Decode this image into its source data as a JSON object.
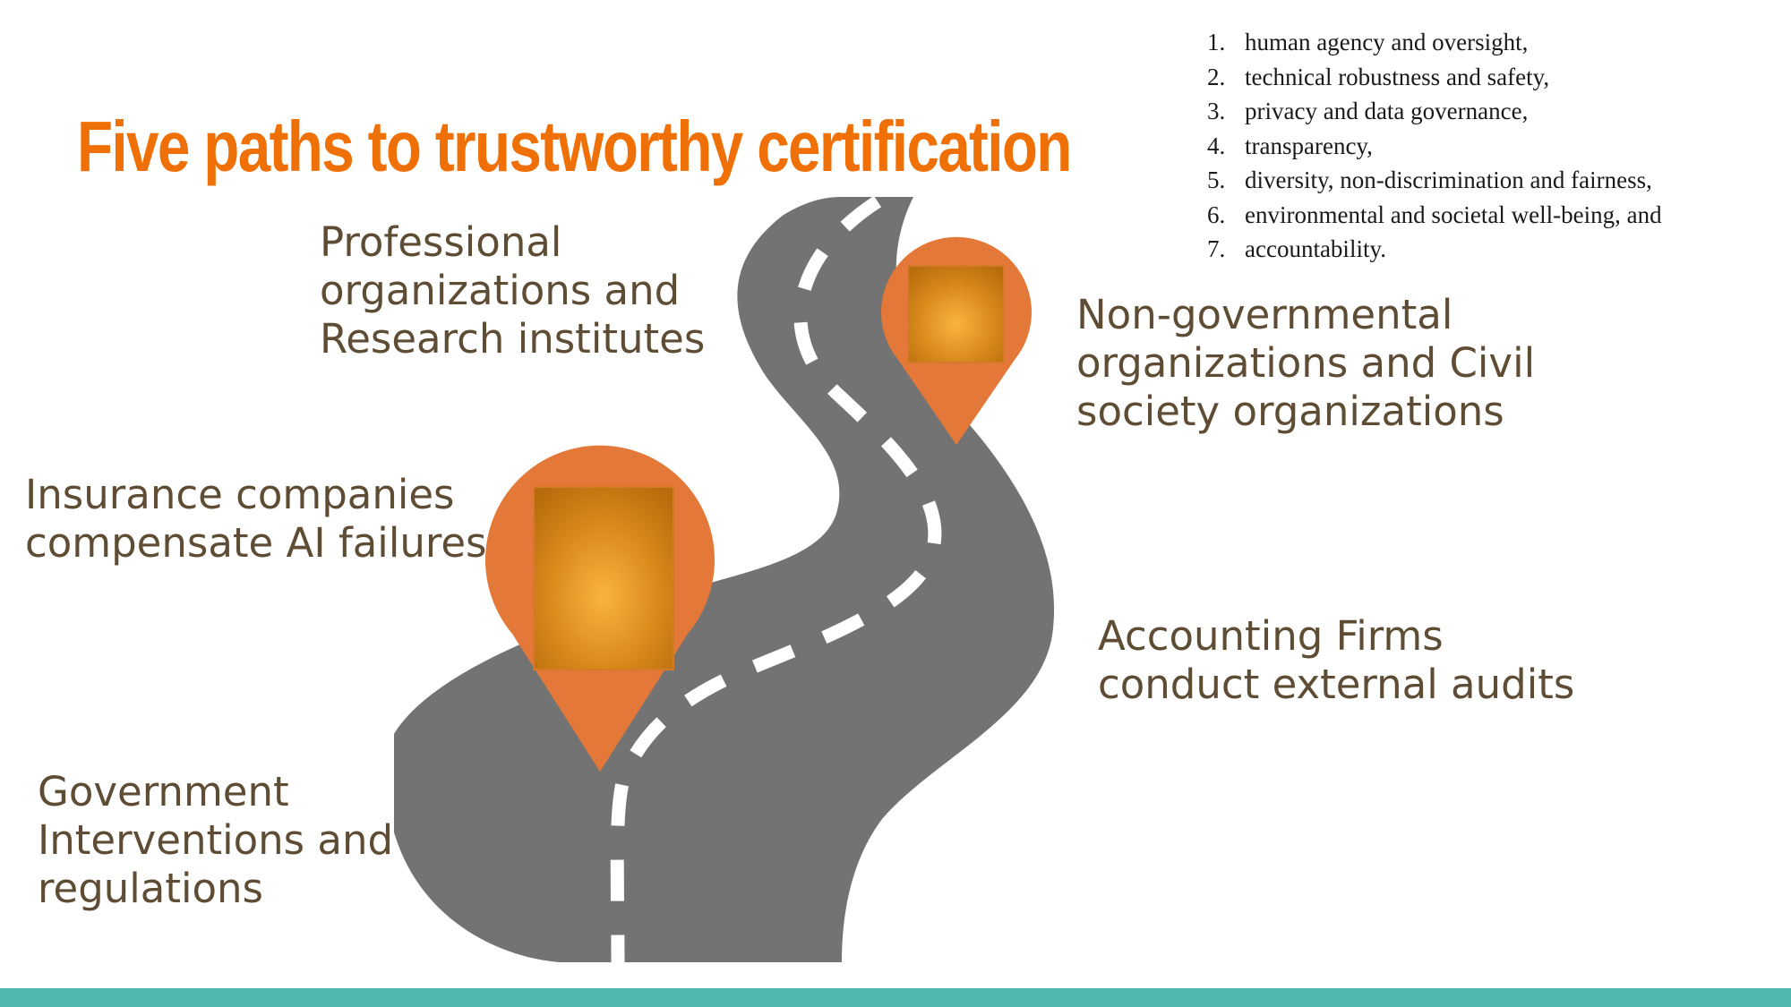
{
  "slide": {
    "title": "Five paths to trustworthy certification",
    "principles": [
      {
        "num": "1.",
        "text": "human agency and oversight,"
      },
      {
        "num": "2.",
        "text": "technical robustness and safety,"
      },
      {
        "num": "3.",
        "text": "privacy and data governance,"
      },
      {
        "num": "4.",
        "text": "transparency,"
      },
      {
        "num": "5.",
        "text": "diversity, non-discrimination and fairness,"
      },
      {
        "num": "6.",
        "text": "environmental and societal well-being, and"
      },
      {
        "num": "7.",
        "text": "accountability."
      }
    ],
    "paths": {
      "professional": [
        "Professional",
        "organizations and",
        "Research institutes"
      ],
      "ngo": [
        "Non-governmental",
        "organizations and Civil",
        "society organizations"
      ],
      "insurance": [
        "Insurance companies",
        "compensate AI failures"
      ],
      "accounting": [
        "Accounting Firms",
        "conduct external audits"
      ],
      "government": [
        "Government",
        "Interventions and",
        "regulations"
      ]
    }
  },
  "colors": {
    "title": "#f07008",
    "label_text": "#5e4c34",
    "road": "#737373",
    "road_marking": "#ffffff",
    "pin": "#e37838",
    "footer_bar": "#4db8ab"
  },
  "icons": [
    "road-illustration",
    "map-pin-icon"
  ]
}
